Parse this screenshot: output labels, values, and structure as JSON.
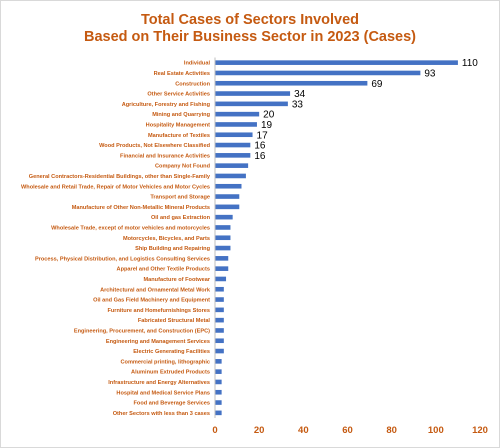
{
  "chart_data": {
    "type": "bar",
    "orientation": "horizontal",
    "title_lines": [
      "Total Cases of Sectors Involved",
      "Based on Their Business Sector in 2023 (Cases)"
    ],
    "xlim": [
      0,
      120
    ],
    "xticks": [
      "0",
      "20",
      "40",
      "60",
      "80",
      "100",
      "120"
    ],
    "grid": false,
    "bar_color": "#4472c4",
    "text_color": "#c55a11",
    "categories": [
      "Individual",
      "Real Estate Activities",
      "Construction",
      "Other Service Activities",
      "Agriculture, Forestry and Fishing",
      "Mining and Quarrying",
      "Hospitality Management",
      "Manufacture of Textiles",
      "Wood Products, Not Elsewhere Classified",
      "Financial and Insurance Activities",
      "Company Not Found",
      "General Contractors-Residential Buildings, other than Single-Family",
      "Wholesale and Retail Trade, Repair of Motor Vehicles and Motor Cycles",
      "Transport and Storage",
      "Manufacture of Other Non-Metallic Mineral Products",
      "Oil and gas Extraction",
      "Wholesale Trade, except of motor vehicles and motorcycles",
      "Motorcycles, Bicycles, and Parts",
      "Ship Building and Repairing",
      "Process, Physical Distribution, and Logistics Consulting Services",
      "Apparel and Other Textile Products",
      "Manufacture of Footwear",
      "Architectural and Ornamental Metal Work",
      "Oil and Gas Field Machinery and Equipment",
      "Furniture and Homefurnishings Stores",
      "Fabricated Structural Metal",
      "Engineering, Procurement, and Construction (EPC)",
      "Engineering and Management Services",
      "Electric Generating Facilities",
      "Commercial printing, lithographic",
      "Aluminum Extruded Products",
      "Infrastructure and Energy Alternatives",
      "Hospital and Medical Service Plans",
      "Food and Beverage Services",
      "Other Sectors with less than 3 cases"
    ],
    "values": [
      110,
      93,
      69,
      34,
      33,
      20,
      19,
      17,
      16,
      16,
      15,
      14,
      12,
      11,
      11,
      8,
      7,
      7,
      7,
      6,
      6,
      5,
      4,
      4,
      4,
      4,
      4,
      4,
      4,
      3,
      3,
      3,
      3,
      3,
      3
    ],
    "data_labels": [
      "110",
      "93",
      "69",
      "34",
      "33",
      "20",
      "19",
      "17",
      "16",
      "16",
      null,
      null,
      null,
      null,
      null,
      null,
      null,
      null,
      null,
      null,
      null,
      null,
      null,
      null,
      null,
      null,
      null,
      null,
      null,
      null,
      null,
      null,
      null,
      null,
      null
    ]
  }
}
